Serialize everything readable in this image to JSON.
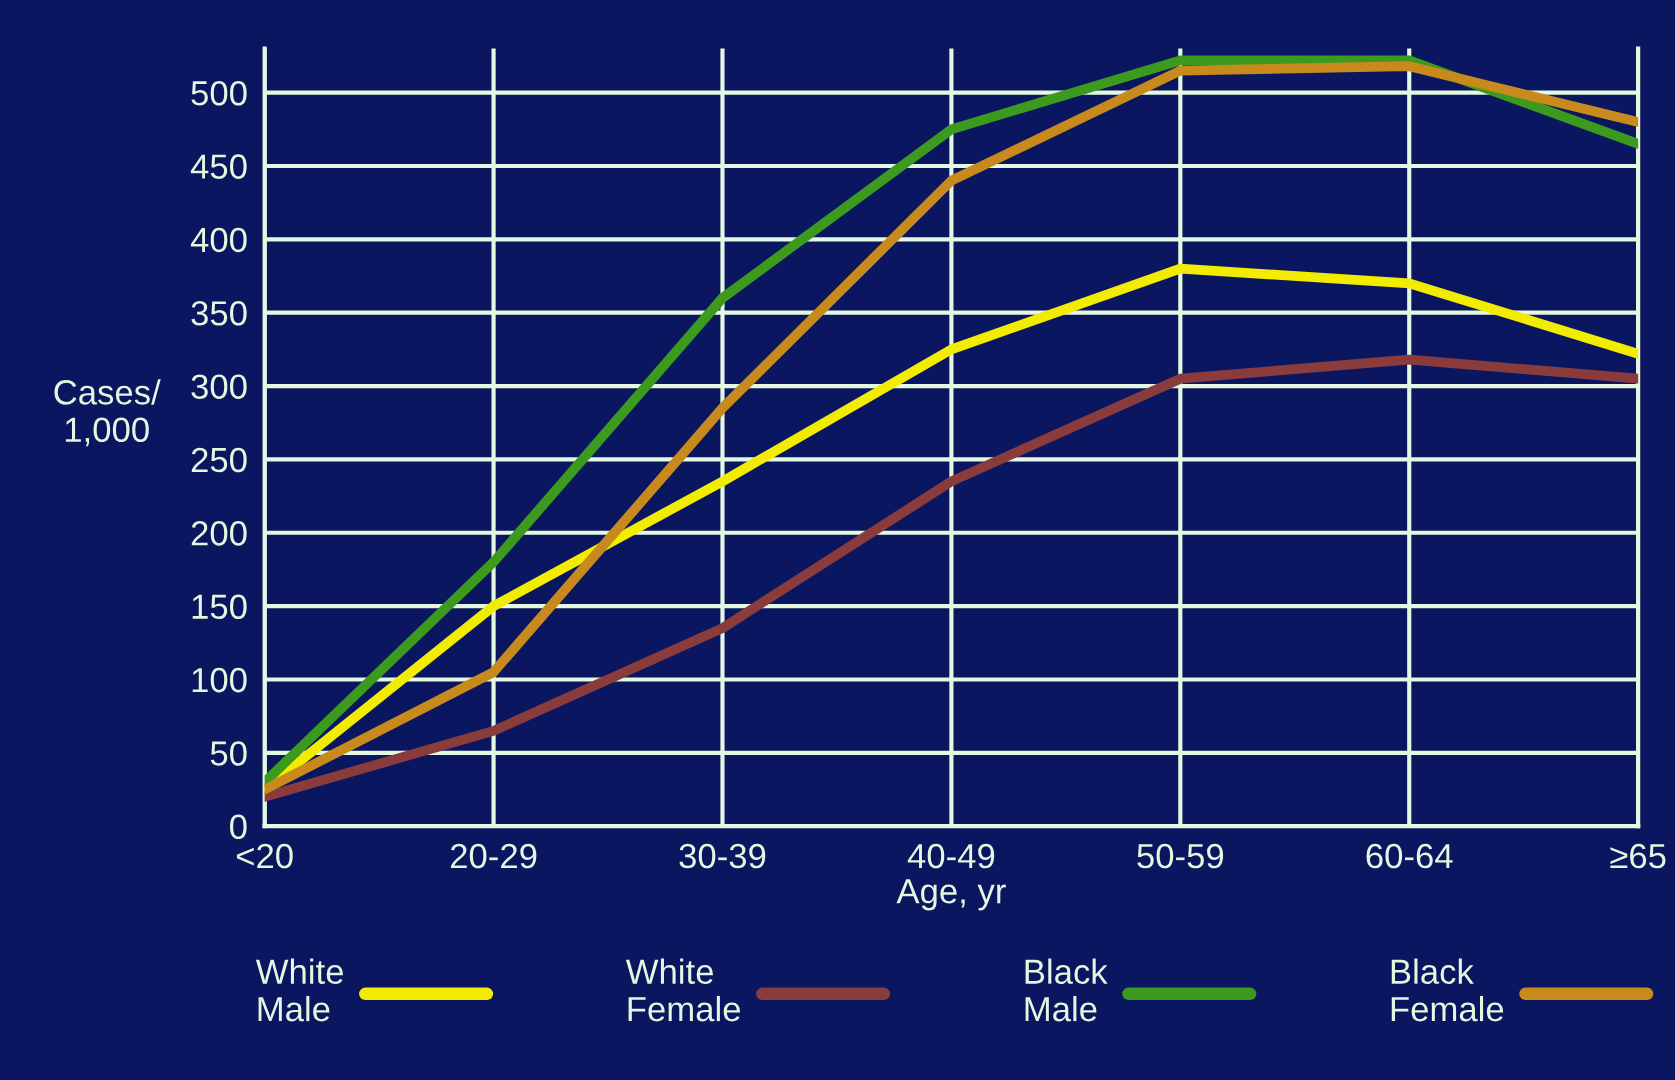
{
  "chart_data": {
    "type": "line",
    "xlabel": "Age, yr",
    "ylabel": "Cases/\n1,000",
    "categories": [
      "<20",
      "20-29",
      "30-39",
      "40-49",
      "50-59",
      "60-64",
      "≥65"
    ],
    "series": [
      {
        "name": "White\nMale",
        "color": "#f2ec00",
        "values": [
          25,
          150,
          235,
          325,
          380,
          370,
          322
        ]
      },
      {
        "name": "White\nFemale",
        "color": "#8a3c3c",
        "values": [
          20,
          65,
          135,
          235,
          305,
          318,
          305
        ]
      },
      {
        "name": "Black\nMale",
        "color": "#3c9a1e",
        "values": [
          30,
          180,
          360,
          475,
          522,
          522,
          465
        ]
      },
      {
        "name": "Black\nFemale",
        "color": "#c88a1c",
        "values": [
          25,
          105,
          285,
          440,
          515,
          518,
          480
        ]
      }
    ],
    "ylim": [
      0,
      530
    ],
    "yticks": [
      0,
      50,
      100,
      150,
      200,
      250,
      300,
      350,
      400,
      450,
      500
    ],
    "grid": true,
    "legend": "bottom",
    "marker": "none",
    "line_style": "solid"
  }
}
